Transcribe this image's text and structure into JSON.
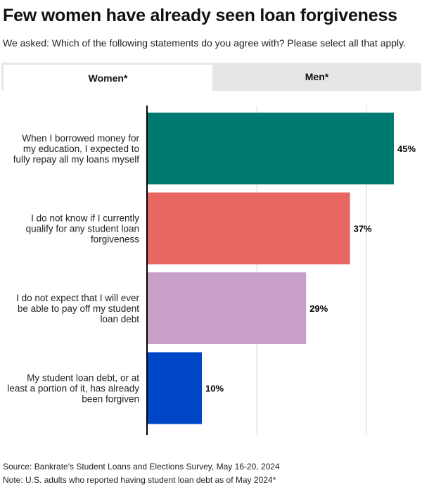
{
  "title": "Few women have already seen loan forgiveness",
  "subtitle": "We asked: Which of the following statements do you agree with? Please select all that apply.",
  "tabs": [
    {
      "label": "Women*",
      "active": true
    },
    {
      "label": "Men*",
      "active": false
    }
  ],
  "chart_data": {
    "type": "bar",
    "orientation": "horizontal",
    "categories": [
      [
        "When I borrowed money for",
        "my education, I expected to",
        "fully repay all my loans myself"
      ],
      [
        "I do not know if I currently",
        "qualify for any student loan",
        "forgiveness"
      ],
      [
        "I do not expect that I will ever",
        "be able to pay off my student",
        "loan debt"
      ],
      [
        "My student loan debt, or at",
        "least a portion of it, has already",
        "been forgiven"
      ]
    ],
    "values": [
      45,
      37,
      29,
      10
    ],
    "value_labels": [
      "45%",
      "37%",
      "29%",
      "10%"
    ],
    "colors": [
      "#007a70",
      "#e86762",
      "#c79fc7",
      "#0047c8"
    ],
    "xlim": [
      0,
      50
    ],
    "grid_values": [
      20,
      40
    ],
    "grid": true,
    "legend": "none"
  },
  "footer": {
    "source": "Source: Bankrate's Student Loans and Elections Survey, May 16-20, 2024",
    "note": "Note: U.S. adults who reported having student loan debt as of May 2024*"
  }
}
